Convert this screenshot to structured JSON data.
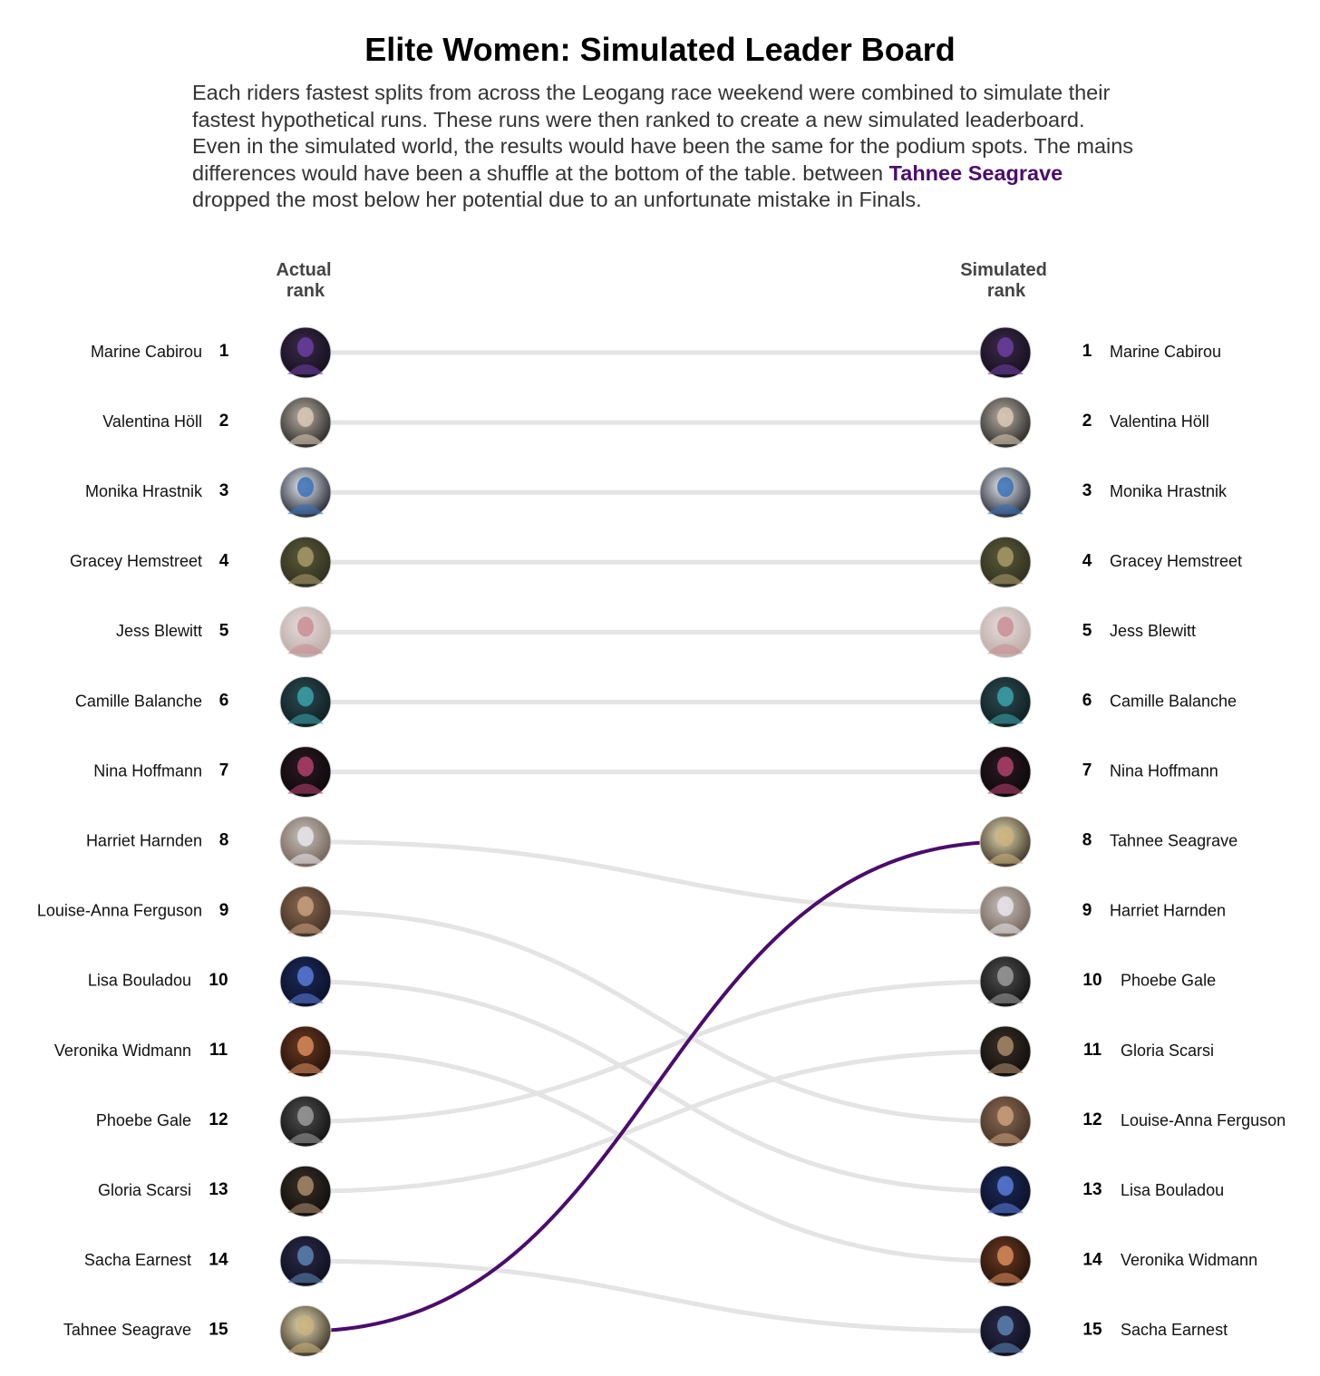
{
  "title": "Elite Women: Simulated Leader Board",
  "subtitle": {
    "before": "Each riders fastest splits from across the Leogang race weekend were combined to simulate their fastest hypothetical runs. These runs were then ranked to create a new simulated leaderboard. Even in the simulated world, the results would have been the same for the podium spots. The mains differences would have been a shuffle at the bottom of the table. between ",
    "highlight": "Tahnee Seagrave",
    "after": " dropped the most below her potential due to an unfortunate mistake in Finals."
  },
  "colors": {
    "highlight": "#4b0d6b",
    "line": "#e4e4e4"
  },
  "chart_data": {
    "type": "slope",
    "left_header": [
      "Actual",
      "rank"
    ],
    "right_header": [
      "Simulated",
      "rank"
    ],
    "highlight_rider": "Tahnee Seagrave",
    "riders": [
      {
        "name": "Marine Cabirou",
        "actual": 1,
        "simulated": 1,
        "avatar": "dark-purple"
      },
      {
        "name": "Valentina Höll",
        "actual": 2,
        "simulated": 2,
        "avatar": "grey-beanie"
      },
      {
        "name": "Monika Hrastnik",
        "actual": 3,
        "simulated": 3,
        "avatar": "white-blue"
      },
      {
        "name": "Gracey Hemstreet",
        "actual": 4,
        "simulated": 4,
        "avatar": "forest-green"
      },
      {
        "name": "Jess Blewitt",
        "actual": 5,
        "simulated": 5,
        "avatar": "light-pink"
      },
      {
        "name": "Camille Balanche",
        "actual": 6,
        "simulated": 6,
        "avatar": "teal-dark"
      },
      {
        "name": "Nina Hoffmann",
        "actual": 7,
        "simulated": 7,
        "avatar": "dark-magenta"
      },
      {
        "name": "Harriet Harnden",
        "actual": 8,
        "simulated": 9,
        "avatar": "light-brown"
      },
      {
        "name": "Louise-Anna Ferguson",
        "actual": 9,
        "simulated": 12,
        "avatar": "warm-brown"
      },
      {
        "name": "Lisa Bouladou",
        "actual": 10,
        "simulated": 13,
        "avatar": "navy-blue"
      },
      {
        "name": "Veronika Widmann",
        "actual": 11,
        "simulated": 14,
        "avatar": "brown-orange"
      },
      {
        "name": "Phoebe Gale",
        "actual": 12,
        "simulated": 10,
        "avatar": "black-white"
      },
      {
        "name": "Gloria Scarsi",
        "actual": 13,
        "simulated": 11,
        "avatar": "black-tan"
      },
      {
        "name": "Sacha Earnest",
        "actual": 14,
        "simulated": 15,
        "avatar": "dark-navy"
      },
      {
        "name": "Tahnee Seagrave",
        "actual": 15,
        "simulated": 8,
        "avatar": "cream-black"
      }
    ]
  }
}
